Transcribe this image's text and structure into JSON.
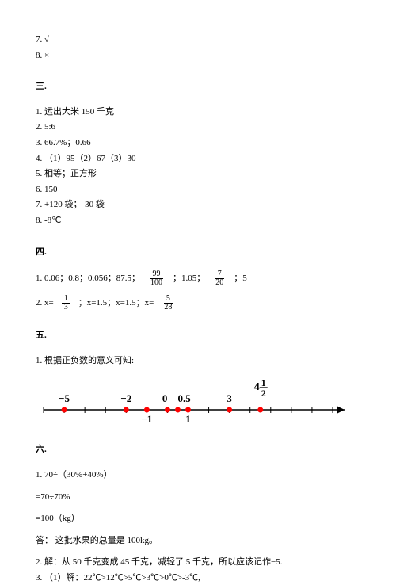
{
  "two": {
    "7": "7. √",
    "8": "8. ×"
  },
  "three": {
    "title": "三.",
    "1": "1. 运出大米 150 千克",
    "2": "2. 5:6",
    "3": "3. 66.7%；0.66",
    "4": "4. （1）95（2）67（3）30",
    "5": "5. 相等；正方形",
    "6": "6. 150",
    "7": "7. +120 袋；-30 袋",
    "8": "8. -8℃"
  },
  "four": {
    "title": "四.",
    "line1_a": "1. 0.06；0.8；0.056；87.5；",
    "frac1_num": "99",
    "frac1_den": "100",
    "line1_b": "；1.05；",
    "frac2_num": "7",
    "frac2_den": "20",
    "line1_c": "；5",
    "line2_a": "2. x=",
    "frac3_num": "1",
    "frac3_den": "3",
    "line2_b": "；x=1.5；x=1.5；x=",
    "frac4_num": "5",
    "frac4_den": "28"
  },
  "five": {
    "title": "五.",
    "1": "1. 根据正负数的意义可知:"
  },
  "numberline": {
    "start": -6,
    "end": 8,
    "tick_step": 1,
    "axis_color": "#000000",
    "point_fill": "#ff0000",
    "label_fontsize": 11,
    "points": [
      {
        "x": -5,
        "label": "−5",
        "label_above": true
      },
      {
        "x": -2,
        "label": "−2",
        "label_above": true
      },
      {
        "x": -1,
        "label": "−1",
        "label_above": false
      },
      {
        "x": 0,
        "label": "0",
        "label_above": true
      },
      {
        "x": 0.5,
        "label": "0.5",
        "label_above": true
      },
      {
        "x": 1,
        "label": "1",
        "label_above": false
      },
      {
        "x": 3,
        "label": "3",
        "label_above": true
      },
      {
        "x": 4.5,
        "label": "frac",
        "frac_int": "4",
        "frac_num": "1",
        "frac_den": "2",
        "label_above": true
      }
    ]
  },
  "six": {
    "title": "六.",
    "1a": "1. 70÷（30%+40%）",
    "1b": "=70÷70%",
    "1c": "=100（kg）",
    "1ans": "答：  这批水果的总量是 100kg。",
    "2": "2. 解：从 50 千克变成 45 千克，减轻了 5 千克，所以应该记作−5.",
    "3": "3. （1）解：22℃>12℃>5℃>3℃>0℃>-3℃,"
  }
}
